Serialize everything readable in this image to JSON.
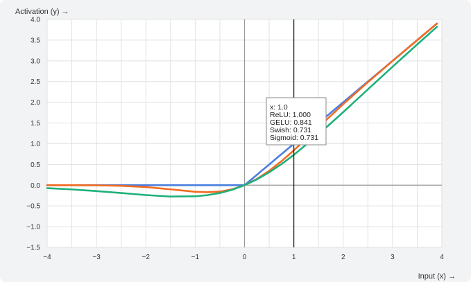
{
  "chart_data": {
    "type": "line",
    "xlabel": "Input (x) →",
    "ylabel": "Activation (y) →",
    "xlim": [
      -4,
      4
    ],
    "ylim": [
      -1.5,
      4.0
    ],
    "x_ticks": [
      "−4",
      "−3",
      "−2",
      "−1",
      "0",
      "1",
      "2",
      "3",
      "4"
    ],
    "x_tick_values": [
      -4,
      -3,
      -2,
      -1,
      0,
      1,
      2,
      3,
      4
    ],
    "y_ticks": [
      "4.0",
      "3.5",
      "3.0",
      "2.5",
      "2.0",
      "1.5",
      "1.0",
      "0.5",
      "0.0",
      "−0.5",
      "−1.0",
      "−1.5"
    ],
    "y_tick_values": [
      4.0,
      3.5,
      3.0,
      2.5,
      2.0,
      1.5,
      1.0,
      0.5,
      0.0,
      -0.5,
      -1.0,
      -1.5
    ],
    "grid": true,
    "x": [
      -4,
      -3.5,
      -3,
      -2.5,
      -2,
      -1.5,
      -1,
      -0.75,
      -0.5,
      -0.25,
      0,
      0.25,
      0.5,
      0.75,
      1,
      1.5,
      2,
      2.5,
      3,
      3.5,
      3.9
    ],
    "series": [
      {
        "color": "#4a7fe0",
        "values": [
          0,
          0,
          0,
          0,
          0,
          0,
          0,
          0,
          0,
          0,
          0,
          0.25,
          0.5,
          0.75,
          1.0,
          1.5,
          2.0,
          2.5,
          3.0,
          3.5,
          3.9
        ]
      },
      {
        "color": "#f26b21",
        "values": [
          -0.0001,
          -0.0008,
          -0.004,
          -0.016,
          -0.045,
          -0.1,
          -0.159,
          -0.17,
          -0.154,
          -0.1,
          0,
          0.15,
          0.346,
          0.58,
          0.841,
          1.4,
          1.955,
          2.485,
          2.996,
          3.499,
          3.9
        ]
      },
      {
        "color": "#1fb07a",
        "values": [
          -0.072,
          -0.102,
          -0.142,
          -0.189,
          -0.238,
          -0.274,
          -0.269,
          -0.24,
          -0.189,
          -0.11,
          0,
          0.14,
          0.311,
          0.51,
          0.731,
          1.227,
          1.762,
          2.311,
          2.858,
          3.396,
          3.821
        ]
      }
    ],
    "cursor": {
      "x": 1.0,
      "tooltip": [
        "x: 1.0",
        "ReLU: 1.000",
        "GELU: 0.841",
        "Swish: 0.731",
        "Sigmoid: 0.731"
      ]
    }
  }
}
